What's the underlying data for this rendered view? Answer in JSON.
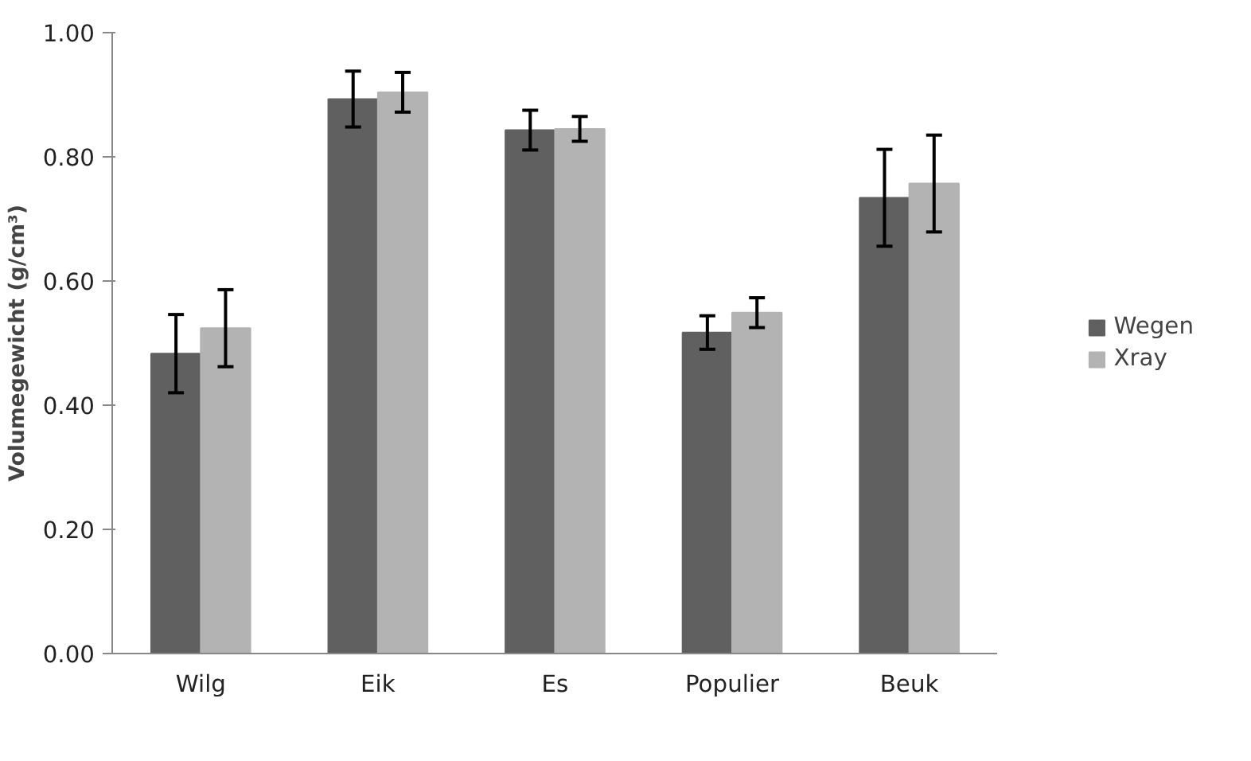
{
  "chart_data": {
    "type": "bar",
    "ylabel": "Volumegewicht (g/cm³)",
    "categories": [
      "Wilg",
      "Eik",
      "Es",
      "Populier",
      "Beuk"
    ],
    "series": [
      {
        "name": "Wegen",
        "color": "#606060",
        "values": [
          0.483,
          0.893,
          0.843,
          0.517,
          0.734
        ],
        "errors": [
          0.063,
          0.045,
          0.032,
          0.027,
          0.078
        ]
      },
      {
        "name": "Xray",
        "color": "#b3b3b3",
        "values": [
          0.524,
          0.904,
          0.845,
          0.549,
          0.757
        ],
        "errors": [
          0.062,
          0.032,
          0.02,
          0.024,
          0.078
        ]
      }
    ],
    "ylim": [
      0,
      1
    ],
    "yticks": [
      {
        "value": 0,
        "label": "0.00"
      },
      {
        "value": 0.2,
        "label": "0.20"
      },
      {
        "value": 0.4,
        "label": "0.40"
      },
      {
        "value": 0.6,
        "label": "0.60"
      },
      {
        "value": 0.8,
        "label": "0.80"
      },
      {
        "value": 1,
        "label": "1.00"
      }
    ],
    "grid": false,
    "legend": "right"
  }
}
